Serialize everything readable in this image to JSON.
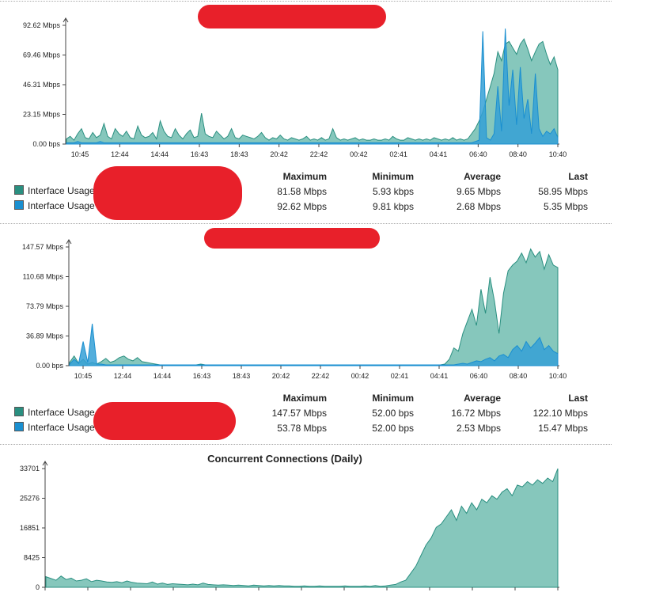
{
  "colors": {
    "teal": "#2a8f80",
    "teal_fill": "#7fc4b8",
    "blue": "#1a8fd0",
    "blue_fill": "#35a0d6",
    "redaction": "#e8202a"
  },
  "stat_headers": [
    "Maximum",
    "Minimum",
    "Average",
    "Last"
  ],
  "chart_data": [
    {
      "type": "area",
      "title": "",
      "y_ticks": [
        "0.00 bps",
        "23.15 Mbps",
        "46.31 Mbps",
        "69.46 Mbps",
        "92.62 Mbps"
      ],
      "ylim": [
        0,
        92.62
      ],
      "x_ticks": [
        "10:45",
        "12:44",
        "14:44",
        "16:43",
        "18:43",
        "20:42",
        "22:42",
        "00:42",
        "02:41",
        "04:41",
        "06:40",
        "08:40",
        "10:40"
      ],
      "series": [
        {
          "name": "Interface Usage",
          "color": "teal",
          "values": [
            4,
            6,
            3,
            8,
            12,
            5,
            4,
            9,
            5,
            7,
            16,
            6,
            4,
            12,
            8,
            6,
            10,
            5,
            4,
            14,
            7,
            5,
            6,
            9,
            4,
            18,
            10,
            6,
            5,
            12,
            7,
            4,
            8,
            11,
            5,
            6,
            24,
            8,
            6,
            5,
            10,
            7,
            4,
            6,
            12,
            5,
            4,
            7,
            6,
            5,
            4,
            6,
            9,
            5,
            3,
            5,
            4,
            7,
            4,
            3,
            5,
            4,
            3,
            4,
            6,
            3,
            4,
            3,
            5,
            3,
            4,
            12,
            5,
            3,
            4,
            3,
            4,
            5,
            3,
            4,
            3,
            3,
            4,
            3,
            3,
            4,
            3,
            6,
            4,
            3,
            3,
            5,
            4,
            3,
            4,
            3,
            4,
            3,
            5,
            4,
            3,
            4,
            3,
            5,
            3,
            4,
            3,
            4,
            8,
            12,
            18,
            25,
            35,
            45,
            55,
            72,
            65,
            78,
            80,
            75,
            70,
            78,
            82,
            74,
            65,
            72,
            78,
            80,
            70,
            62,
            68,
            58
          ]
        },
        {
          "name": "Interface Usage",
          "color": "blue",
          "values": [
            1,
            1,
            1,
            2,
            1,
            1,
            1,
            1,
            1,
            2,
            1,
            1,
            1,
            1,
            1,
            1,
            1,
            1,
            1,
            1,
            1,
            1,
            1,
            1,
            1,
            1,
            1,
            1,
            1,
            1,
            1,
            1,
            1,
            1,
            1,
            1,
            1,
            1,
            1,
            1,
            1,
            1,
            1,
            1,
            1,
            1,
            1,
            1,
            1,
            1,
            1,
            1,
            1,
            1,
            1,
            1,
            1,
            1,
            1,
            1,
            1,
            1,
            1,
            1,
            1,
            1,
            1,
            1,
            1,
            1,
            1,
            1,
            1,
            1,
            1,
            1,
            1,
            1,
            1,
            1,
            1,
            1,
            1,
            1,
            1,
            1,
            1,
            1,
            1,
            1,
            1,
            1,
            1,
            1,
            1,
            1,
            1,
            1,
            1,
            1,
            1,
            1,
            1,
            1,
            1,
            1,
            1,
            1,
            1,
            2,
            3,
            88,
            5,
            3,
            8,
            45,
            10,
            90,
            30,
            58,
            15,
            60,
            20,
            35,
            8,
            55,
            12,
            6,
            10,
            8,
            12,
            5
          ]
        }
      ],
      "stats": [
        {
          "max": "81.58 Mbps",
          "min": "5.93 kbps",
          "avg": "9.65 Mbps",
          "last": "58.95 Mbps"
        },
        {
          "max": "92.62 Mbps",
          "min": "9.81 kbps",
          "avg": "2.68 Mbps",
          "last": "5.35 Mbps"
        }
      ]
    },
    {
      "type": "area",
      "title": "",
      "y_ticks": [
        "0.00 bps",
        "36.89 Mbps",
        "73.79 Mbps",
        "110.68 Mbps",
        "147.57 Mbps"
      ],
      "ylim": [
        0,
        147.57
      ],
      "x_ticks": [
        "10:45",
        "12:44",
        "14:44",
        "16:43",
        "18:43",
        "20:42",
        "22:42",
        "00:42",
        "02:41",
        "04:41",
        "06:40",
        "08:40",
        "10:40"
      ],
      "series": [
        {
          "name": "Interface Usage",
          "color": "teal",
          "values": [
            4,
            12,
            3,
            8,
            2,
            4,
            2,
            5,
            9,
            4,
            6,
            10,
            12,
            8,
            6,
            10,
            5,
            4,
            3,
            2,
            1,
            1,
            1,
            1,
            1,
            1,
            1,
            1,
            1,
            2,
            1,
            1,
            1,
            1,
            1,
            1,
            1,
            1,
            1,
            1,
            1,
            1,
            1,
            1,
            1,
            1,
            1,
            1,
            1,
            1,
            1,
            1,
            1,
            1,
            1,
            1,
            1,
            1,
            1,
            1,
            1,
            1,
            1,
            1,
            1,
            1,
            1,
            1,
            1,
            1,
            1,
            1,
            1,
            1,
            1,
            1,
            1,
            1,
            1,
            1,
            1,
            1,
            1,
            2,
            8,
            22,
            18,
            40,
            55,
            70,
            50,
            95,
            65,
            110,
            80,
            40,
            90,
            118,
            125,
            130,
            140,
            128,
            145,
            135,
            142,
            120,
            138,
            125,
            122
          ]
        },
        {
          "name": "Interface Usage",
          "color": "blue",
          "values": [
            2,
            8,
            3,
            30,
            4,
            52,
            2,
            2,
            1,
            1,
            1,
            1,
            1,
            1,
            1,
            1,
            1,
            1,
            1,
            1,
            1,
            1,
            1,
            1,
            1,
            1,
            1,
            1,
            1,
            1,
            1,
            1,
            1,
            1,
            1,
            1,
            1,
            1,
            1,
            1,
            1,
            1,
            1,
            1,
            1,
            1,
            1,
            1,
            1,
            1,
            1,
            1,
            1,
            1,
            1,
            1,
            1,
            1,
            1,
            1,
            1,
            1,
            1,
            1,
            1,
            1,
            1,
            1,
            1,
            1,
            1,
            1,
            1,
            1,
            1,
            1,
            1,
            1,
            1,
            1,
            1,
            1,
            1,
            1,
            1,
            1,
            2,
            3,
            2,
            4,
            6,
            5,
            8,
            10,
            6,
            12,
            14,
            10,
            20,
            25,
            18,
            30,
            22,
            28,
            35,
            20,
            25,
            18,
            15
          ]
        }
      ],
      "stats": [
        {
          "max": "147.57 Mbps",
          "min": "52.00 bps",
          "avg": "16.72 Mbps",
          "last": "122.10 Mbps"
        },
        {
          "max": "53.78 Mbps",
          "min": "52.00 bps",
          "avg": "2.53 Mbps",
          "last": "15.47 Mbps"
        }
      ]
    },
    {
      "type": "area",
      "title": "Concurrent Connections (Daily)",
      "y_ticks": [
        "0",
        "8425",
        "16851",
        "25276",
        "33701"
      ],
      "ylim": [
        0,
        33701
      ],
      "series": [
        {
          "name": "",
          "color": "teal",
          "values": [
            3000,
            2500,
            2000,
            3200,
            2200,
            2600,
            1800,
            2000,
            2400,
            1600,
            2000,
            1800,
            1500,
            1400,
            1600,
            1300,
            1800,
            1400,
            1200,
            1100,
            1000,
            1500,
            900,
            1200,
            800,
            1000,
            900,
            800,
            700,
            900,
            700,
            1200,
            800,
            700,
            600,
            700,
            600,
            500,
            600,
            500,
            400,
            600,
            500,
            400,
            500,
            400,
            500,
            400,
            400,
            300,
            300,
            400,
            300,
            300,
            400,
            300,
            300,
            300,
            300,
            400,
            300,
            300,
            300,
            400,
            300,
            500,
            300,
            400,
            600,
            800,
            1500,
            2000,
            4000,
            6000,
            9000,
            12000,
            14000,
            17000,
            18000,
            20000,
            22000,
            19000,
            23000,
            21000,
            24000,
            22000,
            25000,
            24000,
            26000,
            25000,
            27000,
            28000,
            26000,
            29000,
            28500,
            30000,
            29000,
            30500,
            29500,
            31000,
            30000,
            33701
          ]
        }
      ]
    }
  ],
  "legend_label": "Interface Usage"
}
